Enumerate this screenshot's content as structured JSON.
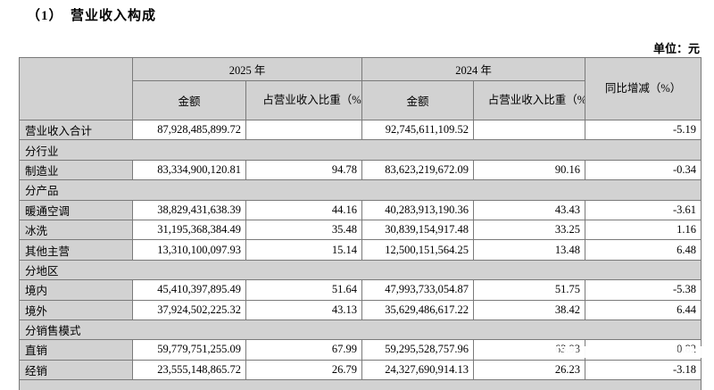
{
  "page": {
    "title": "（1）　营业收入构成",
    "unit_label": "单位：元"
  },
  "colors": {
    "cell_gray": "#d2d2d2",
    "border_gray": "#7a7a7a",
    "text": "#000000",
    "background": "#ffffff"
  },
  "table": {
    "headers": {
      "year_2025": "2025 年",
      "year_2024": "2024 年",
      "amount": "金额",
      "pct_of_revenue": "占营业收入比重（%）",
      "yoy": "同比增减（%）"
    },
    "rows": [
      {
        "type": "data",
        "label": "营业收入合计",
        "a2025": "87,928,485,899.72",
        "p2025": "",
        "a2024": "92,745,611,109.52",
        "p2024": "",
        "yoy": "-5.19"
      },
      {
        "type": "section",
        "label": "分行业"
      },
      {
        "type": "data",
        "label": "制造业",
        "a2025": "83,334,900,120.81",
        "p2025": "94.78",
        "a2024": "83,623,219,672.09",
        "p2024": "90.16",
        "yoy": "-0.34"
      },
      {
        "type": "section",
        "label": "分产品"
      },
      {
        "type": "data",
        "label": "暖通空调",
        "a2025": "38,829,431,638.39",
        "p2025": "44.16",
        "a2024": "40,283,913,190.36",
        "p2024": "43.43",
        "yoy": "-3.61"
      },
      {
        "type": "data",
        "label": "冰洗",
        "a2025": "31,195,368,384.49",
        "p2025": "35.48",
        "a2024": "30,839,154,917.48",
        "p2024": "33.25",
        "yoy": "1.16"
      },
      {
        "type": "data",
        "label": "其他主营",
        "a2025": "13,310,100,097.93",
        "p2025": "15.14",
        "a2024": "12,500,151,564.25",
        "p2024": "13.48",
        "yoy": "6.48"
      },
      {
        "type": "section",
        "label": "分地区"
      },
      {
        "type": "data",
        "label": "境内",
        "a2025": "45,410,397,895.49",
        "p2025": "51.64",
        "a2024": "47,993,733,054.87",
        "p2024": "51.75",
        "yoy": "-5.38"
      },
      {
        "type": "data",
        "label": "境外",
        "a2025": "37,924,502,225.32",
        "p2025": "43.13",
        "a2024": "35,629,486,617.22",
        "p2024": "38.42",
        "yoy": "6.44"
      },
      {
        "type": "section",
        "label": "分销售模式"
      },
      {
        "type": "data",
        "label": "直销",
        "a2025": "59,779,751,255.09",
        "p2025": "67.99",
        "a2024": "59,295,528,757.96",
        "p2024": "63.93",
        "yoy": "0.82"
      },
      {
        "type": "data",
        "label": "经销",
        "a2025": "23,555,148,865.72",
        "p2025": "26.79",
        "a2024": "24,327,690,914.13",
        "p2024": "26.23",
        "yoy": "-3.18"
      },
      {
        "type": "section",
        "label": "",
        "partial": true
      }
    ]
  }
}
